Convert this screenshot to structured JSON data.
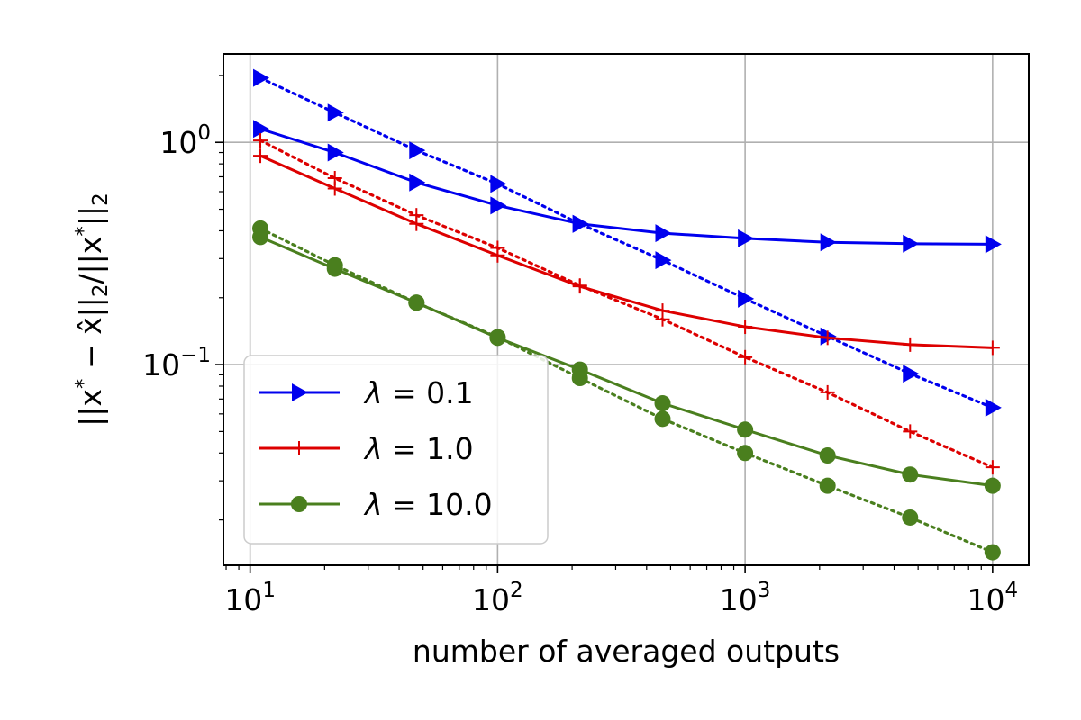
{
  "chart_data": {
    "type": "line",
    "title": "",
    "xlabel": "number of averaged outputs",
    "ylabel": "||x* − x̂||2/||x*||2",
    "xscale": "log",
    "yscale": "log",
    "xlim": [
      7.8,
      14000
    ],
    "ylim": [
      0.0125,
      2.5
    ],
    "grid": true,
    "legend_position": "lower-left",
    "x": [
      11,
      22,
      47,
      100,
      215,
      464,
      1000,
      2154,
      4642,
      10000
    ],
    "x_ticks": [
      {
        "value": 10,
        "base": "10",
        "exp": "1"
      },
      {
        "value": 100,
        "base": "10",
        "exp": "2"
      },
      {
        "value": 1000,
        "base": "10",
        "exp": "3"
      },
      {
        "value": 10000,
        "base": "10",
        "exp": "4"
      }
    ],
    "y_ticks": [
      {
        "value": 1,
        "base": "10",
        "exp": "0"
      },
      {
        "value": 0.1,
        "base": "10",
        "exp": "−1"
      }
    ],
    "series": [
      {
        "name": "λ = 0.1",
        "color": "#0000ee",
        "marker": "triangle-right",
        "solid": [
          1.15,
          0.9,
          0.66,
          0.52,
          0.43,
          0.39,
          0.37,
          0.355,
          0.35,
          0.348
        ],
        "dotted": [
          1.95,
          1.36,
          0.92,
          0.65,
          0.43,
          0.295,
          0.198,
          0.134,
          0.091,
          0.064
        ]
      },
      {
        "name": "λ = 1.0",
        "color": "#dd0000",
        "marker": "plus",
        "solid": [
          0.87,
          0.62,
          0.43,
          0.31,
          0.225,
          0.175,
          0.148,
          0.132,
          0.123,
          0.119
        ],
        "dotted": [
          1.02,
          0.69,
          0.47,
          0.335,
          0.227,
          0.16,
          0.108,
          0.075,
          0.05,
          0.0345
        ]
      },
      {
        "name": "λ = 10.0",
        "color": "#4a7f1e",
        "marker": "circle",
        "solid": [
          0.375,
          0.27,
          0.19,
          0.132,
          0.095,
          0.067,
          0.051,
          0.039,
          0.032,
          0.0285
        ],
        "dotted": [
          0.41,
          0.28,
          0.19,
          0.133,
          0.087,
          0.057,
          0.04,
          0.0285,
          0.0205,
          0.0143
        ]
      }
    ]
  }
}
